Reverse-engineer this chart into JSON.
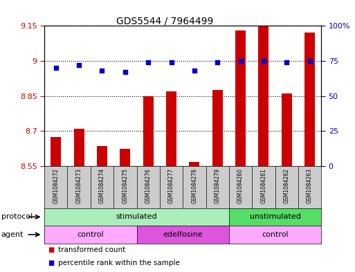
{
  "title": "GDS5544 / 7964499",
  "samples": [
    "GSM1084272",
    "GSM1084273",
    "GSM1084274",
    "GSM1084275",
    "GSM1084276",
    "GSM1084277",
    "GSM1084278",
    "GSM1084279",
    "GSM1084260",
    "GSM1084261",
    "GSM1084262",
    "GSM1084263"
  ],
  "bar_values": [
    8.675,
    8.71,
    8.635,
    8.622,
    8.85,
    8.87,
    8.568,
    8.875,
    9.13,
    9.148,
    8.86,
    9.12
  ],
  "percentile_values": [
    70,
    72,
    68,
    67,
    74,
    74,
    68,
    74,
    75,
    75,
    74,
    75
  ],
  "ylim_left": [
    8.55,
    9.15
  ],
  "ylim_right": [
    0,
    100
  ],
  "yticks_left": [
    8.55,
    8.7,
    8.85,
    9.0,
    9.15
  ],
  "yticks_right": [
    0,
    25,
    50,
    75,
    100
  ],
  "ytick_labels_left": [
    "8.55",
    "8.7",
    "8.85",
    "9",
    "9.15"
  ],
  "ytick_labels_right": [
    "0",
    "25",
    "50",
    "75",
    "100%"
  ],
  "bar_color": "#cc0000",
  "dot_color": "#0000cc",
  "grid_color": "#000000",
  "protocol_groups": [
    {
      "label": "stimulated",
      "start": 0,
      "end": 8,
      "color": "#aaeebb"
    },
    {
      "label": "unstimulated",
      "start": 8,
      "end": 12,
      "color": "#55dd66"
    }
  ],
  "agent_groups": [
    {
      "label": "control",
      "start": 0,
      "end": 4,
      "color": "#ffaaff"
    },
    {
      "label": "edelfosine",
      "start": 4,
      "end": 8,
      "color": "#dd55dd"
    },
    {
      "label": "control",
      "start": 8,
      "end": 12,
      "color": "#ffaaff"
    }
  ],
  "protocol_label": "protocol",
  "agent_label": "agent",
  "legend_items": [
    {
      "label": "transformed count",
      "color": "#cc0000"
    },
    {
      "label": "percentile rank within the sample",
      "color": "#0000cc"
    }
  ],
  "tick_label_color_left": "#cc0000",
  "tick_label_color_right": "#0000bb",
  "background_color": "#ffffff",
  "plot_bg": "#ffffff",
  "sample_box_color": "#cccccc",
  "figsize": [
    5.13,
    3.93
  ],
  "dpi": 100
}
